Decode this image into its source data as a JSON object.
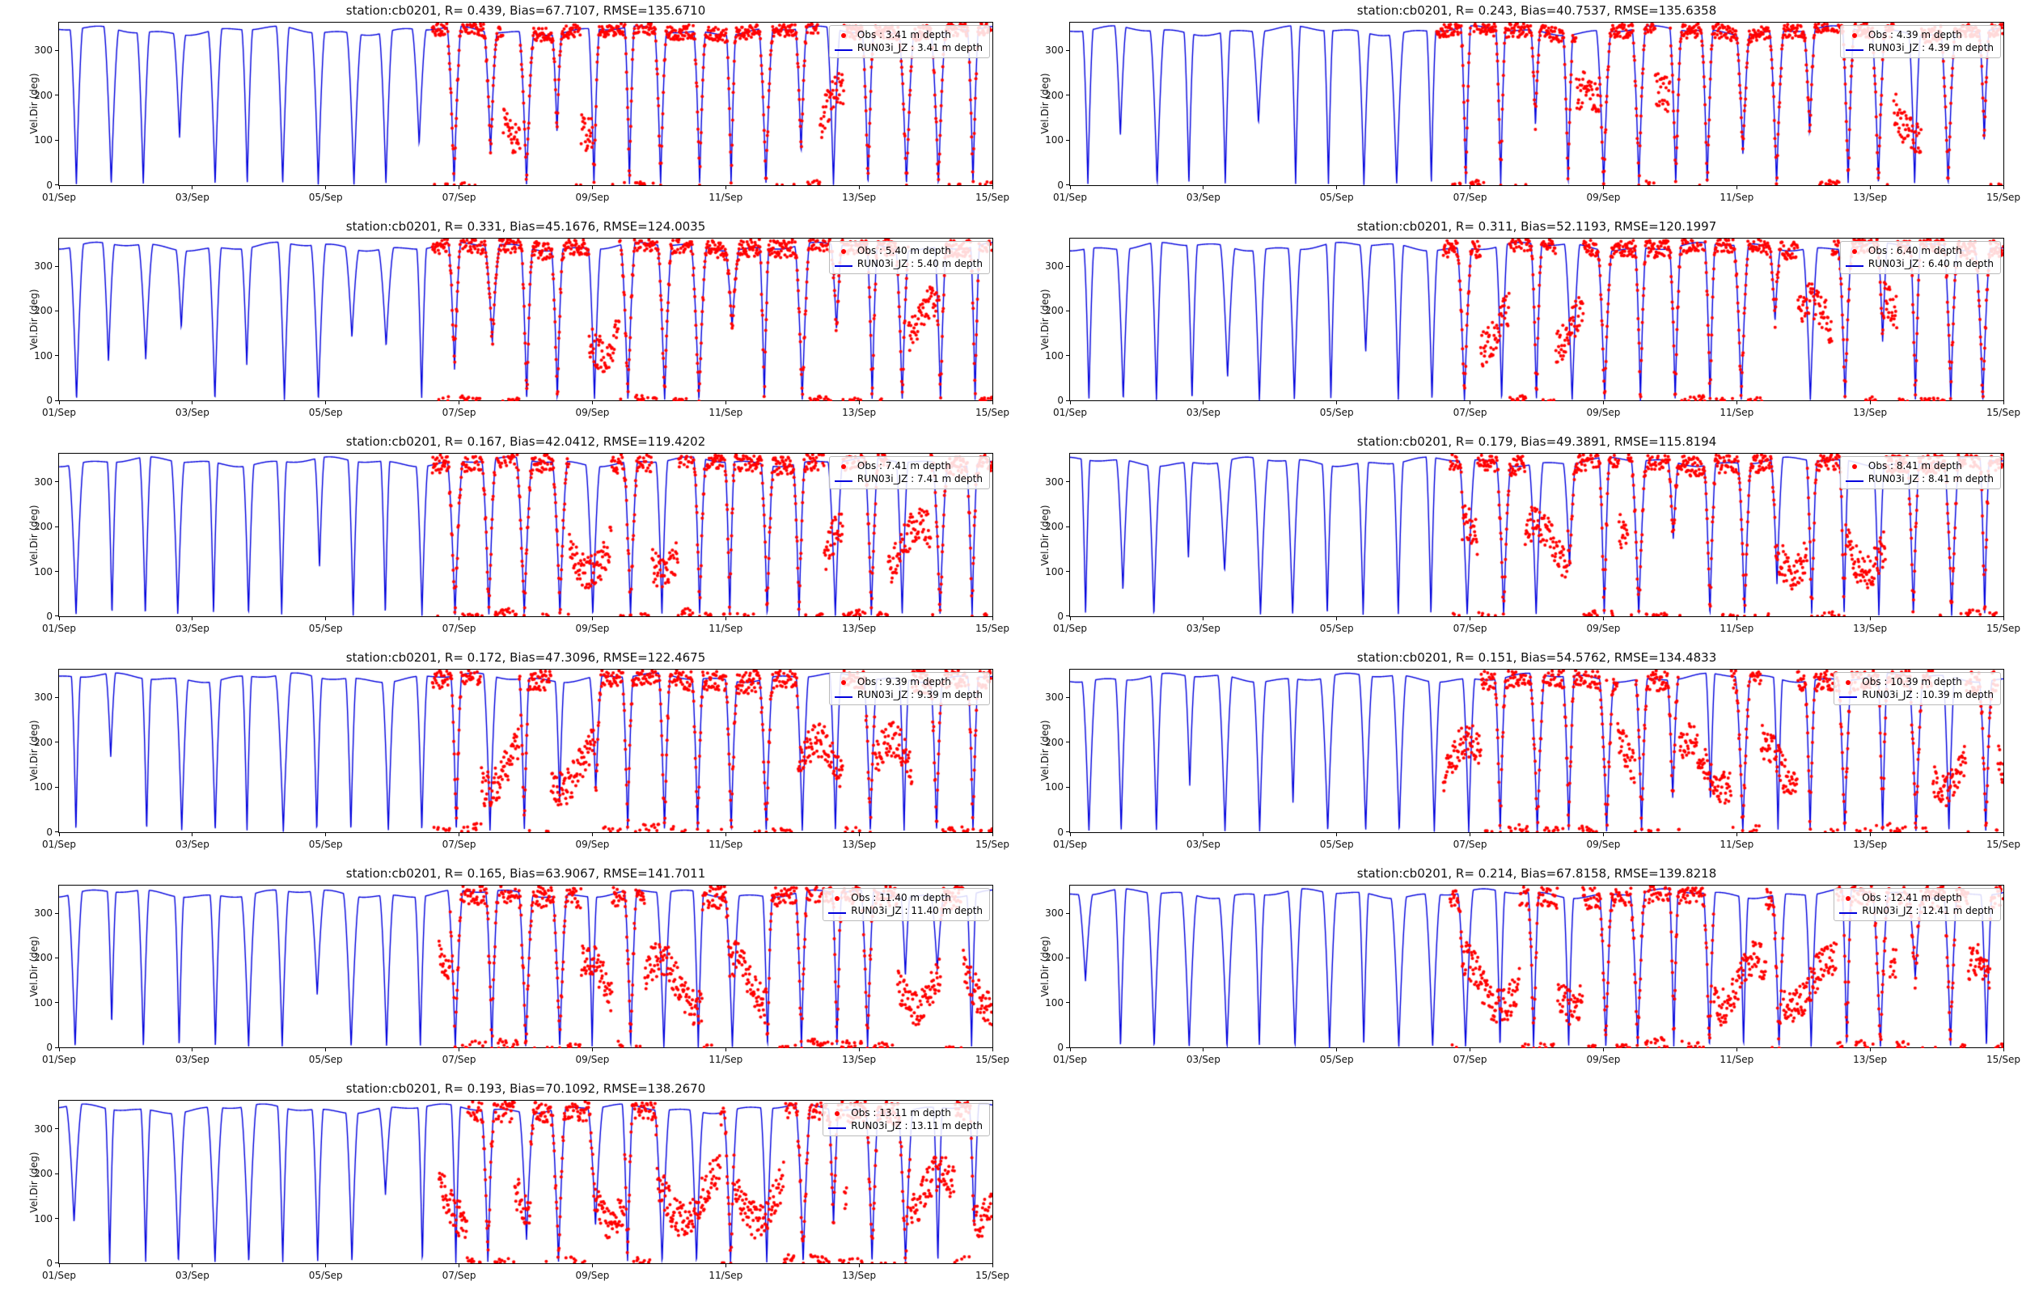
{
  "figure": {
    "station": "cb0201",
    "layout": {
      "rows": 6,
      "cols": 2,
      "panel_count": 11
    },
    "x_axis_tick_labels": [
      "01/Sep",
      "03/Sep",
      "05/Sep",
      "07/Sep",
      "09/Sep",
      "11/Sep",
      "13/Sep",
      "15/Sep"
    ],
    "y_axis_label": "Vel.Dir (deg)"
  },
  "chart_data": [
    {
      "type": "line+scatter",
      "title": "station:cb0201, R= 0.439, Bias=67.7107, RMSE=135.6710",
      "station": "cb0201",
      "stats": {
        "R": 0.439,
        "Bias": 67.7107,
        "RMSE": 135.671
      },
      "depth_m": 3.41,
      "ylabel": "Vel.Dir (deg)",
      "ylim": [
        0,
        362
      ],
      "yticks": [
        0,
        100,
        200,
        300
      ],
      "xticks": [
        "01/Sep",
        "03/Sep",
        "05/Sep",
        "07/Sep",
        "09/Sep",
        "11/Sep",
        "13/Sep",
        "15/Sep"
      ],
      "x_range_days": [
        0,
        14
      ],
      "legend_position": "upper right",
      "series": [
        {
          "name": "Obs : 3.41 m depth",
          "type": "scatter",
          "color": "#ff0000",
          "start_day": 5.6,
          "noise_deg": 10,
          "deviation_fraction": 0.12,
          "deviation_center_deg": 165,
          "seed": 101
        },
        {
          "name": "RUN03i_JZ : 3.41 m depth",
          "type": "line",
          "color": "#0000dd",
          "period_days": 0.5175,
          "plateau_deg": 348,
          "dip_min_deg": 0,
          "pattern": "semidiurnal tidal direction reversals: plateau near 350 deg with sharp dips to 0 deg",
          "seed": 11
        }
      ]
    },
    {
      "type": "line+scatter",
      "title": "station:cb0201, R= 0.243, Bias=40.7537, RMSE=135.6358",
      "station": "cb0201",
      "stats": {
        "R": 0.243,
        "Bias": 40.7537,
        "RMSE": 135.6358
      },
      "depth_m": 4.39,
      "ylabel": "Vel.Dir (deg)",
      "ylim": [
        0,
        362
      ],
      "yticks": [
        0,
        100,
        200,
        300
      ],
      "xticks": [
        "01/Sep",
        "03/Sep",
        "05/Sep",
        "07/Sep",
        "09/Sep",
        "11/Sep",
        "13/Sep",
        "15/Sep"
      ],
      "x_range_days": [
        0,
        14
      ],
      "legend_position": "upper right",
      "series": [
        {
          "name": "Obs : 4.39 m depth",
          "type": "scatter",
          "color": "#ff0000",
          "start_day": 5.5,
          "noise_deg": 10,
          "deviation_fraction": 0.15,
          "deviation_center_deg": 160,
          "seed": 202
        },
        {
          "name": "RUN03i_JZ : 4.39 m depth",
          "type": "line",
          "color": "#0000dd",
          "period_days": 0.5175,
          "plateau_deg": 348,
          "dip_min_deg": 0,
          "pattern": "semidiurnal tidal direction reversals: plateau near 350 deg with sharp dips to 0 deg",
          "seed": 22
        }
      ]
    },
    {
      "type": "line+scatter",
      "title": "station:cb0201, R= 0.331, Bias=45.1676, RMSE=124.0035",
      "station": "cb0201",
      "stats": {
        "R": 0.331,
        "Bias": 45.1676,
        "RMSE": 124.0035
      },
      "depth_m": 5.4,
      "ylabel": "Vel.Dir (deg)",
      "ylim": [
        0,
        362
      ],
      "yticks": [
        0,
        100,
        200,
        300
      ],
      "xticks": [
        "01/Sep",
        "03/Sep",
        "05/Sep",
        "07/Sep",
        "09/Sep",
        "11/Sep",
        "13/Sep",
        "15/Sep"
      ],
      "x_range_days": [
        0,
        14
      ],
      "legend_position": "upper right",
      "series": [
        {
          "name": "Obs : 5.40 m depth",
          "type": "scatter",
          "color": "#ff0000",
          "start_day": 5.6,
          "noise_deg": 12,
          "deviation_fraction": 0.18,
          "deviation_center_deg": 160,
          "seed": 303
        },
        {
          "name": "RUN03i_JZ : 5.40 m depth",
          "type": "line",
          "color": "#0000dd",
          "period_days": 0.5175,
          "plateau_deg": 348,
          "dip_min_deg": 0,
          "pattern": "semidiurnal tidal direction reversals: plateau near 350 deg with sharp dips to 0 deg",
          "seed": 33
        }
      ]
    },
    {
      "type": "line+scatter",
      "title": "station:cb0201, R= 0.311, Bias=52.1193, RMSE=120.1997",
      "station": "cb0201",
      "stats": {
        "R": 0.311,
        "Bias": 52.1193,
        "RMSE": 120.1997
      },
      "depth_m": 6.4,
      "ylabel": "Vel.Dir (deg)",
      "ylim": [
        0,
        362
      ],
      "yticks": [
        0,
        100,
        200,
        300
      ],
      "xticks": [
        "01/Sep",
        "03/Sep",
        "05/Sep",
        "07/Sep",
        "09/Sep",
        "11/Sep",
        "13/Sep",
        "15/Sep"
      ],
      "x_range_days": [
        0,
        14
      ],
      "legend_position": "upper right",
      "series": [
        {
          "name": "Obs : 6.40 m depth",
          "type": "scatter",
          "color": "#ff0000",
          "start_day": 5.6,
          "noise_deg": 12,
          "deviation_fraction": 0.22,
          "deviation_center_deg": 170,
          "seed": 404
        },
        {
          "name": "RUN03i_JZ : 6.40 m depth",
          "type": "line",
          "color": "#0000dd",
          "period_days": 0.5175,
          "plateau_deg": 348,
          "dip_min_deg": 0,
          "pattern": "semidiurnal tidal direction reversals: plateau near 350 deg with sharp dips to 0 deg",
          "seed": 44
        }
      ]
    },
    {
      "type": "line+scatter",
      "title": "station:cb0201, R= 0.167, Bias=42.0412, RMSE=119.4202",
      "station": "cb0201",
      "stats": {
        "R": 0.167,
        "Bias": 42.0412,
        "RMSE": 119.4202
      },
      "depth_m": 7.41,
      "ylabel": "Vel.Dir (deg)",
      "ylim": [
        0,
        362
      ],
      "yticks": [
        0,
        100,
        200,
        300
      ],
      "xticks": [
        "01/Sep",
        "03/Sep",
        "05/Sep",
        "07/Sep",
        "09/Sep",
        "11/Sep",
        "13/Sep",
        "15/Sep"
      ],
      "x_range_days": [
        0,
        14
      ],
      "legend_position": "upper right",
      "series": [
        {
          "name": "Obs : 7.41 m depth",
          "type": "scatter",
          "color": "#ff0000",
          "start_day": 5.6,
          "noise_deg": 14,
          "deviation_fraction": 0.3,
          "deviation_center_deg": 150,
          "seed": 505
        },
        {
          "name": "RUN03i_JZ : 7.41 m depth",
          "type": "line",
          "color": "#0000dd",
          "period_days": 0.5175,
          "plateau_deg": 348,
          "dip_min_deg": 0,
          "pattern": "semidiurnal tidal direction reversals: plateau near 350 deg with broad dips toward 0 deg",
          "seed": 55
        }
      ]
    },
    {
      "type": "line+scatter",
      "title": "station:cb0201, R= 0.179, Bias=49.3891, RMSE=115.8194",
      "station": "cb0201",
      "stats": {
        "R": 0.179,
        "Bias": 49.3891,
        "RMSE": 115.8194
      },
      "depth_m": 8.41,
      "ylabel": "Vel.Dir (deg)",
      "ylim": [
        0,
        362
      ],
      "yticks": [
        0,
        100,
        200,
        300
      ],
      "xticks": [
        "01/Sep",
        "03/Sep",
        "05/Sep",
        "07/Sep",
        "09/Sep",
        "11/Sep",
        "13/Sep",
        "15/Sep"
      ],
      "x_range_days": [
        0,
        14
      ],
      "legend_position": "upper right",
      "series": [
        {
          "name": "Obs : 8.41 m depth",
          "type": "scatter",
          "color": "#ff0000",
          "start_day": 5.7,
          "noise_deg": 14,
          "deviation_fraction": 0.3,
          "deviation_center_deg": 155,
          "seed": 606
        },
        {
          "name": "RUN03i_JZ : 8.41 m depth",
          "type": "line",
          "color": "#0000dd",
          "period_days": 0.5175,
          "plateau_deg": 348,
          "dip_min_deg": 0,
          "pattern": "semidiurnal tidal direction reversals: plateau near 350 deg with broad dips toward 0 deg",
          "seed": 66
        }
      ]
    },
    {
      "type": "line+scatter",
      "title": "station:cb0201, R= 0.172, Bias=47.3096, RMSE=122.4675",
      "station": "cb0201",
      "stats": {
        "R": 0.172,
        "Bias": 47.3096,
        "RMSE": 122.4675
      },
      "depth_m": 9.39,
      "ylabel": "Vel.Dir (deg)",
      "ylim": [
        0,
        362
      ],
      "yticks": [
        0,
        100,
        200,
        300
      ],
      "xticks": [
        "01/Sep",
        "03/Sep",
        "05/Sep",
        "07/Sep",
        "09/Sep",
        "11/Sep",
        "13/Sep",
        "15/Sep"
      ],
      "x_range_days": [
        0,
        14
      ],
      "legend_position": "upper right",
      "series": [
        {
          "name": "Obs : 9.39 m depth",
          "type": "scatter",
          "color": "#ff0000",
          "start_day": 5.6,
          "noise_deg": 16,
          "deviation_fraction": 0.35,
          "deviation_center_deg": 150,
          "seed": 707
        },
        {
          "name": "RUN03i_JZ : 9.39 m depth",
          "type": "line",
          "color": "#0000dd",
          "period_days": 0.5175,
          "plateau_deg": 348,
          "dip_min_deg": 0,
          "pattern": "semidiurnal tidal direction reversals: plateau near 350 deg with sharp dips to 0 deg",
          "seed": 77
        }
      ]
    },
    {
      "type": "line+scatter",
      "title": "station:cb0201, R= 0.151, Bias=54.5762, RMSE=134.4833",
      "station": "cb0201",
      "stats": {
        "R": 0.151,
        "Bias": 54.5762,
        "RMSE": 134.4833
      },
      "depth_m": 10.39,
      "ylabel": "Vel.Dir (deg)",
      "ylim": [
        0,
        362
      ],
      "yticks": [
        0,
        100,
        200,
        300
      ],
      "xticks": [
        "01/Sep",
        "03/Sep",
        "05/Sep",
        "07/Sep",
        "09/Sep",
        "11/Sep",
        "13/Sep",
        "15/Sep"
      ],
      "x_range_days": [
        0,
        14
      ],
      "legend_position": "upper right",
      "series": [
        {
          "name": "Obs : 10.39 m depth",
          "type": "scatter",
          "color": "#ff0000",
          "start_day": 5.6,
          "noise_deg": 16,
          "deviation_fraction": 0.4,
          "deviation_center_deg": 150,
          "seed": 808
        },
        {
          "name": "RUN03i_JZ : 10.39 m depth",
          "type": "line",
          "color": "#0000dd",
          "period_days": 0.5175,
          "plateau_deg": 348,
          "dip_min_deg": 0,
          "pattern": "semidiurnal tidal direction reversals: plateau near 350 deg with sharp dips to 0 deg",
          "seed": 88
        }
      ]
    },
    {
      "type": "line+scatter",
      "title": "station:cb0201, R= 0.165, Bias=63.9067, RMSE=141.7011",
      "station": "cb0201",
      "stats": {
        "R": 0.165,
        "Bias": 63.9067,
        "RMSE": 141.7011
      },
      "depth_m": 11.4,
      "ylabel": "Vel.Dir (deg)",
      "ylim": [
        0,
        362
      ],
      "yticks": [
        0,
        100,
        200,
        300
      ],
      "xticks": [
        "01/Sep",
        "03/Sep",
        "05/Sep",
        "07/Sep",
        "09/Sep",
        "11/Sep",
        "13/Sep",
        "15/Sep"
      ],
      "x_range_days": [
        0,
        14
      ],
      "legend_position": "upper right",
      "series": [
        {
          "name": "Obs : 11.40 m depth",
          "type": "scatter",
          "color": "#ff0000",
          "start_day": 5.7,
          "noise_deg": 18,
          "deviation_fraction": 0.45,
          "deviation_center_deg": 145,
          "seed": 909
        },
        {
          "name": "RUN03i_JZ : 11.40 m depth",
          "type": "line",
          "color": "#0000dd",
          "period_days": 0.5175,
          "plateau_deg": 348,
          "dip_min_deg": 0,
          "pattern": "semidiurnal tidal direction reversals: plateau near 350 deg with sharp dips to 0 deg",
          "seed": 99
        }
      ]
    },
    {
      "type": "line+scatter",
      "title": "station:cb0201, R= 0.214, Bias=67.8158, RMSE=139.8218",
      "station": "cb0201",
      "stats": {
        "R": 0.214,
        "Bias": 67.8158,
        "RMSE": 139.8218
      },
      "depth_m": 12.41,
      "ylabel": "Vel.Dir (deg)",
      "ylim": [
        0,
        362
      ],
      "yticks": [
        0,
        100,
        200,
        300
      ],
      "xticks": [
        "01/Sep",
        "03/Sep",
        "05/Sep",
        "07/Sep",
        "09/Sep",
        "11/Sep",
        "13/Sep",
        "15/Sep"
      ],
      "x_range_days": [
        0,
        14
      ],
      "legend_position": "upper right",
      "series": [
        {
          "name": "Obs : 12.41 m depth",
          "type": "scatter",
          "color": "#ff0000",
          "start_day": 5.7,
          "noise_deg": 18,
          "deviation_fraction": 0.45,
          "deviation_center_deg": 145,
          "seed": 1010
        },
        {
          "name": "RUN03i_JZ : 12.41 m depth",
          "type": "line",
          "color": "#0000dd",
          "period_days": 0.5175,
          "plateau_deg": 348,
          "dip_min_deg": 0,
          "pattern": "semidiurnal tidal direction reversals: plateau near 350 deg with sharp dips to 0 deg",
          "seed": 110
        }
      ]
    },
    {
      "type": "line+scatter",
      "title": "station:cb0201, R= 0.193, Bias=70.1092, RMSE=138.2670",
      "station": "cb0201",
      "stats": {
        "R": 0.193,
        "Bias": 70.1092,
        "RMSE": 138.267
      },
      "depth_m": 13.11,
      "ylabel": "Vel.Dir (deg)",
      "ylim": [
        0,
        362
      ],
      "yticks": [
        0,
        100,
        200,
        300
      ],
      "xticks": [
        "01/Sep",
        "03/Sep",
        "05/Sep",
        "07/Sep",
        "09/Sep",
        "11/Sep",
        "13/Sep",
        "15/Sep"
      ],
      "x_range_days": [
        0,
        14
      ],
      "legend_position": "upper right",
      "series": [
        {
          "name": "Obs : 13.11 m depth",
          "type": "scatter",
          "color": "#ff0000",
          "start_day": 5.7,
          "noise_deg": 18,
          "deviation_fraction": 0.5,
          "deviation_center_deg": 150,
          "seed": 1111
        },
        {
          "name": "RUN03i_JZ : 13.11 m depth",
          "type": "line",
          "color": "#0000dd",
          "period_days": 0.5175,
          "plateau_deg": 348,
          "dip_min_deg": 0,
          "pattern": "semidiurnal tidal direction reversals: plateau near 350 deg with sharp dips to 0 deg",
          "seed": 121
        }
      ]
    }
  ]
}
